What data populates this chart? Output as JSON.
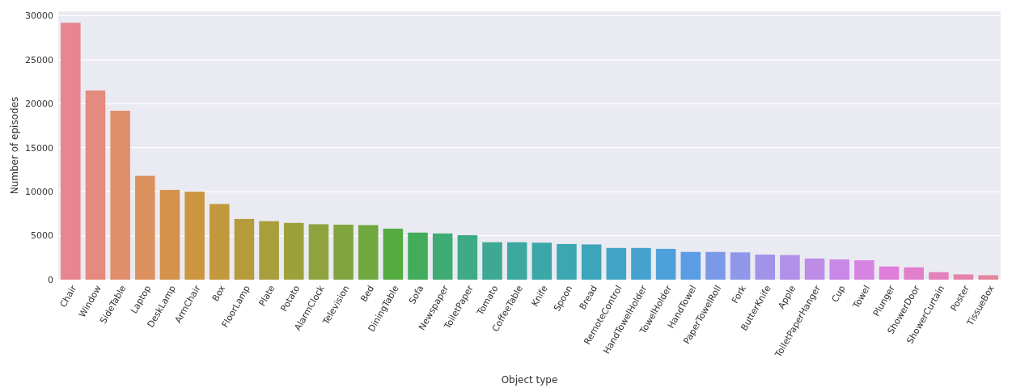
{
  "chart_data": {
    "type": "bar",
    "xlabel": "Object type",
    "ylabel": "Number of episodes",
    "categories": [
      "Chair",
      "Window",
      "SideTable",
      "Laptop",
      "DeskLamp",
      "ArmChair",
      "Box",
      "FloorLamp",
      "Plate",
      "Potato",
      "AlarmClock",
      "Television",
      "Bed",
      "DiningTable",
      "Sofa",
      "Newspaper",
      "ToiletPaper",
      "Tomato",
      "CoffeeTable",
      "Knife",
      "Spoon",
      "Bread",
      "RemoteControl",
      "HandTowelHolder",
      "TowelHolder",
      "HandTowel",
      "PaperTowelRoll",
      "Fork",
      "ButterKnife",
      "Apple",
      "ToiletPaperHanger",
      "Cup",
      "Towel",
      "Plunger",
      "ShowerDoor",
      "ShowerCurtain",
      "Poster",
      "TissueBox"
    ],
    "values": [
      29200,
      21500,
      19200,
      11800,
      10200,
      10000,
      8600,
      6900,
      6650,
      6450,
      6300,
      6250,
      6200,
      5800,
      5350,
      5250,
      5050,
      4250,
      4250,
      4200,
      4050,
      4000,
      3600,
      3600,
      3500,
      3150,
      3150,
      3100,
      2850,
      2800,
      2400,
      2300,
      2200,
      1500,
      1400,
      850,
      600,
      500
    ],
    "colors": [
      "#e8868f",
      "#e58a7e",
      "#e18e6c",
      "#dc905c",
      "#d4924a",
      "#cc9540",
      "#c2983d",
      "#b59b3c",
      "#a99e3c",
      "#9ca13c",
      "#8ea33d",
      "#80a53e",
      "#6ea83f",
      "#56ab40",
      "#43ac5a",
      "#3fab74",
      "#3eaa86",
      "#3da994",
      "#3ca89f",
      "#3ca7a8",
      "#3ca6b1",
      "#3da5ba",
      "#40a4c4",
      "#45a2ce",
      "#4da0d9",
      "#5b9de4",
      "#7a9ae8",
      "#8f97e8",
      "#a193e8",
      "#b090e8",
      "#bd8ce7",
      "#c988e6",
      "#d584e2",
      "#e07fdb",
      "#e27fcb",
      "#e381ba",
      "#e483aa",
      "#e5859c"
    ],
    "ylim": [
      0,
      30500
    ],
    "yticks": [
      0,
      5000,
      10000,
      15000,
      20000,
      25000,
      30000
    ],
    "grid": "y"
  }
}
